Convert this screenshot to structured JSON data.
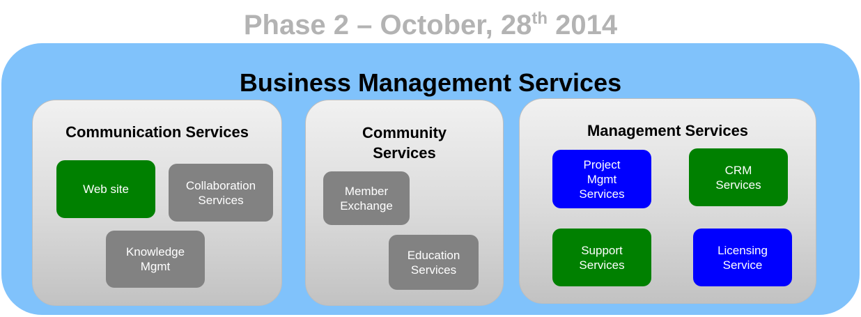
{
  "header": {
    "phase_main": "Phase 2 – October, 28",
    "phase_sup": "th",
    "phase_year": " 2014"
  },
  "title": "Business Management Services",
  "colors": {
    "outer_bg": "#80c2fb",
    "green": "#008000",
    "gray": "#828282",
    "blue": "#0000ff"
  },
  "groups": {
    "communication": {
      "title": "Communication Services",
      "items": [
        {
          "label": "Web site",
          "status": "green"
        },
        {
          "label": "Collaboration\nServices",
          "status": "gray"
        },
        {
          "label": "Knowledge\nMgmt",
          "status": "gray"
        }
      ]
    },
    "community": {
      "title": "Community\nServices",
      "items": [
        {
          "label": "Member\nExchange",
          "status": "gray"
        },
        {
          "label": "Education\nServices",
          "status": "gray"
        }
      ]
    },
    "management": {
      "title": "Management Services",
      "items": [
        {
          "label": "Project\nMgmt\nServices",
          "status": "blue"
        },
        {
          "label": "CRM\nServices",
          "status": "green"
        },
        {
          "label": "Support\nServices",
          "status": "green"
        },
        {
          "label": "Licensing\nService",
          "status": "blue"
        }
      ]
    }
  }
}
